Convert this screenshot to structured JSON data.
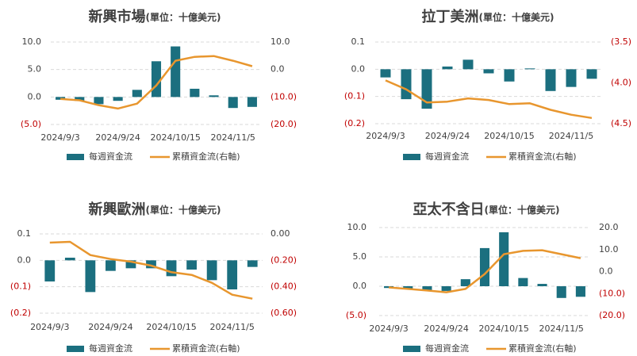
{
  "chart_data": [
    {
      "type": "combo",
      "title": "新興市場",
      "subtitle": "(單位：十億美元)",
      "categories": [
        "2024/9/3",
        null,
        null,
        "2024/9/24",
        null,
        null,
        "2024/10/15",
        null,
        null,
        "2024/11/5",
        null
      ],
      "series": [
        {
          "name": "每週資金流",
          "color": "#1b6f7f",
          "values": [
            -0.5,
            -0.7,
            -1.3,
            -0.7,
            1.3,
            6.5,
            9.2,
            1.5,
            0.3,
            -2.0,
            -1.8
          ]
        },
        {
          "name": "累積資金流(右軸)",
          "color": "#e8962e",
          "axis": "y2",
          "values": [
            -10.7,
            -11.2,
            -13.0,
            -14.2,
            -12.4,
            -5.8,
            3.2,
            4.6,
            4.9,
            3.2,
            1.2
          ]
        }
      ],
      "ylim": [
        -5,
        10
      ],
      "yticks": [
        {
          "value": 10,
          "label": "10.0"
        },
        {
          "value": 5,
          "label": "5.0"
        },
        {
          "value": 0,
          "label": "0.0"
        },
        {
          "value": -5,
          "label": "(5.0)"
        }
      ],
      "y2lim": [
        -20,
        10
      ],
      "y2ticks": [
        {
          "value": 10,
          "label": "10.0"
        },
        {
          "value": 0,
          "label": "0.0"
        },
        {
          "value": -10,
          "label": "(10.0)"
        },
        {
          "value": -20,
          "label": "(20.0)"
        }
      ],
      "grid": true
    },
    {
      "type": "combo",
      "title": "拉丁美洲",
      "subtitle": "(單位：十億美元)",
      "categories": [
        "2024/9/3",
        null,
        null,
        "2024/9/24",
        null,
        null,
        "2024/10/15",
        null,
        null,
        "2024/11/5",
        null
      ],
      "series": [
        {
          "name": "每週資金流",
          "color": "#1b6f7f",
          "values": [
            -0.03,
            -0.11,
            -0.145,
            0.01,
            0.035,
            -0.015,
            -0.045,
            0.003,
            -0.08,
            -0.065,
            -0.035
          ]
        },
        {
          "name": "累積資金流(右軸)",
          "color": "#e8962e",
          "axis": "y2",
          "values": [
            -3.97,
            -4.08,
            -4.24,
            -4.23,
            -4.19,
            -4.21,
            -4.26,
            -4.25,
            -4.33,
            -4.39,
            -4.43
          ]
        }
      ],
      "ylim": [
        -0.2,
        0.1
      ],
      "yticks": [
        0.1,
        {
          "value": 0,
          "label": "0.0"
        },
        {
          "value": -0.1,
          "label": "(0.1)"
        },
        {
          "value": -0.2,
          "label": "(0.2)"
        }
      ],
      "y2lim": [
        -4.5,
        -3.5
      ],
      "y2ticks": [
        {
          "value": -3.5,
          "label": "(3.5)"
        },
        {
          "value": -4.0,
          "label": "(4.0)"
        },
        {
          "value": -4.5,
          "label": "(4.5)"
        }
      ],
      "grid": true
    },
    {
      "type": "combo",
      "title": "新興歐洲",
      "subtitle": "(單位：十億美元)",
      "categories": [
        "2024/9/3",
        null,
        null,
        "2024/9/24",
        null,
        null,
        "2024/10/15",
        null,
        null,
        "2024/11/5",
        null
      ],
      "series": [
        {
          "name": "每週資金流",
          "color": "#1b6f7f",
          "values": [
            -0.08,
            0.01,
            -0.12,
            -0.04,
            -0.03,
            -0.03,
            -0.06,
            -0.035,
            -0.075,
            -0.11,
            -0.025
          ]
        },
        {
          "name": "累積資金流(右軸)",
          "color": "#e8962e",
          "axis": "y2",
          "values": [
            -0.066,
            -0.06,
            -0.16,
            -0.19,
            -0.21,
            -0.24,
            -0.29,
            -0.31,
            -0.37,
            -0.46,
            -0.49
          ]
        }
      ],
      "ylim": [
        -0.2,
        0.1
      ],
      "yticks": [
        0.1,
        {
          "value": 0,
          "label": "0.0"
        },
        {
          "value": -0.1,
          "label": "(0.1)"
        },
        {
          "value": -0.2,
          "label": "(0.2)"
        }
      ],
      "y2lim": [
        -0.6,
        0
      ],
      "y2ticks": [
        {
          "value": 0,
          "label": "0.00"
        },
        {
          "value": -0.2,
          "label": "(0.20)"
        },
        {
          "value": -0.4,
          "label": "(0.40)"
        },
        {
          "value": -0.6,
          "label": "(0.60)"
        }
      ],
      "grid": true
    },
    {
      "type": "combo",
      "title": "亞太不含日",
      "subtitle": "(單位：十億美元)",
      "categories": [
        "2024/9/3",
        null,
        null,
        "2024/9/24",
        null,
        null,
        "2024/10/15",
        null,
        null,
        "2024/11/5",
        null
      ],
      "series": [
        {
          "name": "每週資金流",
          "color": "#1b6f7f",
          "values": [
            -0.3,
            -0.5,
            -0.8,
            -0.8,
            1.2,
            6.5,
            9.2,
            1.4,
            0.4,
            -2.0,
            -1.8
          ]
        },
        {
          "name": "累積資金流(右軸)",
          "color": "#e8962e",
          "axis": "y2",
          "values": [
            -7.2,
            -7.9,
            -8.6,
            -9.4,
            -7.9,
            -1.1,
            7.9,
            9.4,
            9.7,
            7.9,
            6.1
          ]
        }
      ],
      "ylim": [
        -5,
        10
      ],
      "yticks": [
        {
          "value": 10,
          "label": "10.0"
        },
        {
          "value": 5,
          "label": "5.0"
        },
        {
          "value": 0,
          "label": "0.0"
        },
        {
          "value": -5,
          "label": "(5.0)"
        }
      ],
      "y2lim": [
        -20,
        20
      ],
      "y2ticks": [
        {
          "value": 20,
          "label": "20.0"
        },
        {
          "value": 10,
          "label": "10.0"
        },
        {
          "value": 0,
          "label": "0.0"
        },
        {
          "value": -10,
          "label": "(10.0)"
        },
        {
          "value": -20,
          "label": "(20.0)"
        }
      ],
      "grid": true
    }
  ]
}
